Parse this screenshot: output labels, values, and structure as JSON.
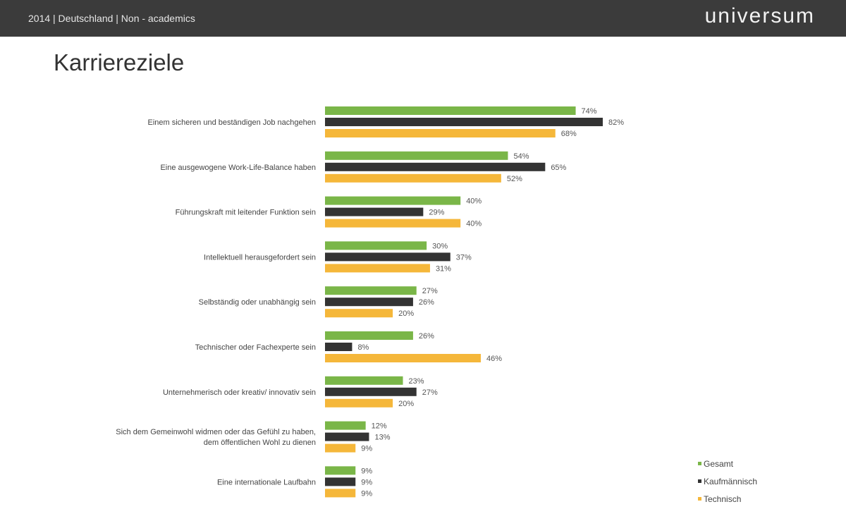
{
  "header": {
    "subtitle": "2014 | Deutschland | Non - academics",
    "logo": "universum"
  },
  "chart_data": {
    "type": "bar",
    "orientation": "horizontal",
    "title": "Karriereziele",
    "categories": [
      [
        "Einem sicheren und beständigen Job nachgehen"
      ],
      [
        "Eine ausgewogene Work-Life-Balance haben"
      ],
      [
        "Führungskraft mit leitender Funktion sein"
      ],
      [
        "Intellektuell herausgefordert sein"
      ],
      [
        "Selbständig oder unabhängig sein"
      ],
      [
        "Technischer oder Fachexperte sein"
      ],
      [
        "Unternehmerisch oder kreativ/ innovativ sein"
      ],
      [
        "Sich dem Gemeinwohl widmen oder das Gefühl zu haben,",
        "dem öffentlichen Wohl zu dienen"
      ],
      [
        "Eine internationale Laufbahn"
      ]
    ],
    "series": [
      {
        "name": "Gesamt",
        "color": "#7ab648",
        "values": [
          74,
          54,
          40,
          30,
          27,
          26,
          23,
          12,
          9
        ]
      },
      {
        "name": "Kaufmännisch",
        "color": "#333333",
        "values": [
          82,
          65,
          29,
          37,
          26,
          8,
          27,
          13,
          9
        ]
      },
      {
        "name": "Technisch",
        "color": "#f5b73a",
        "values": [
          68,
          52,
          40,
          31,
          20,
          46,
          20,
          9,
          9
        ]
      }
    ],
    "value_suffix": "%",
    "xlim": [
      0,
      100
    ],
    "grid": false,
    "legend": "bottom-right"
  }
}
